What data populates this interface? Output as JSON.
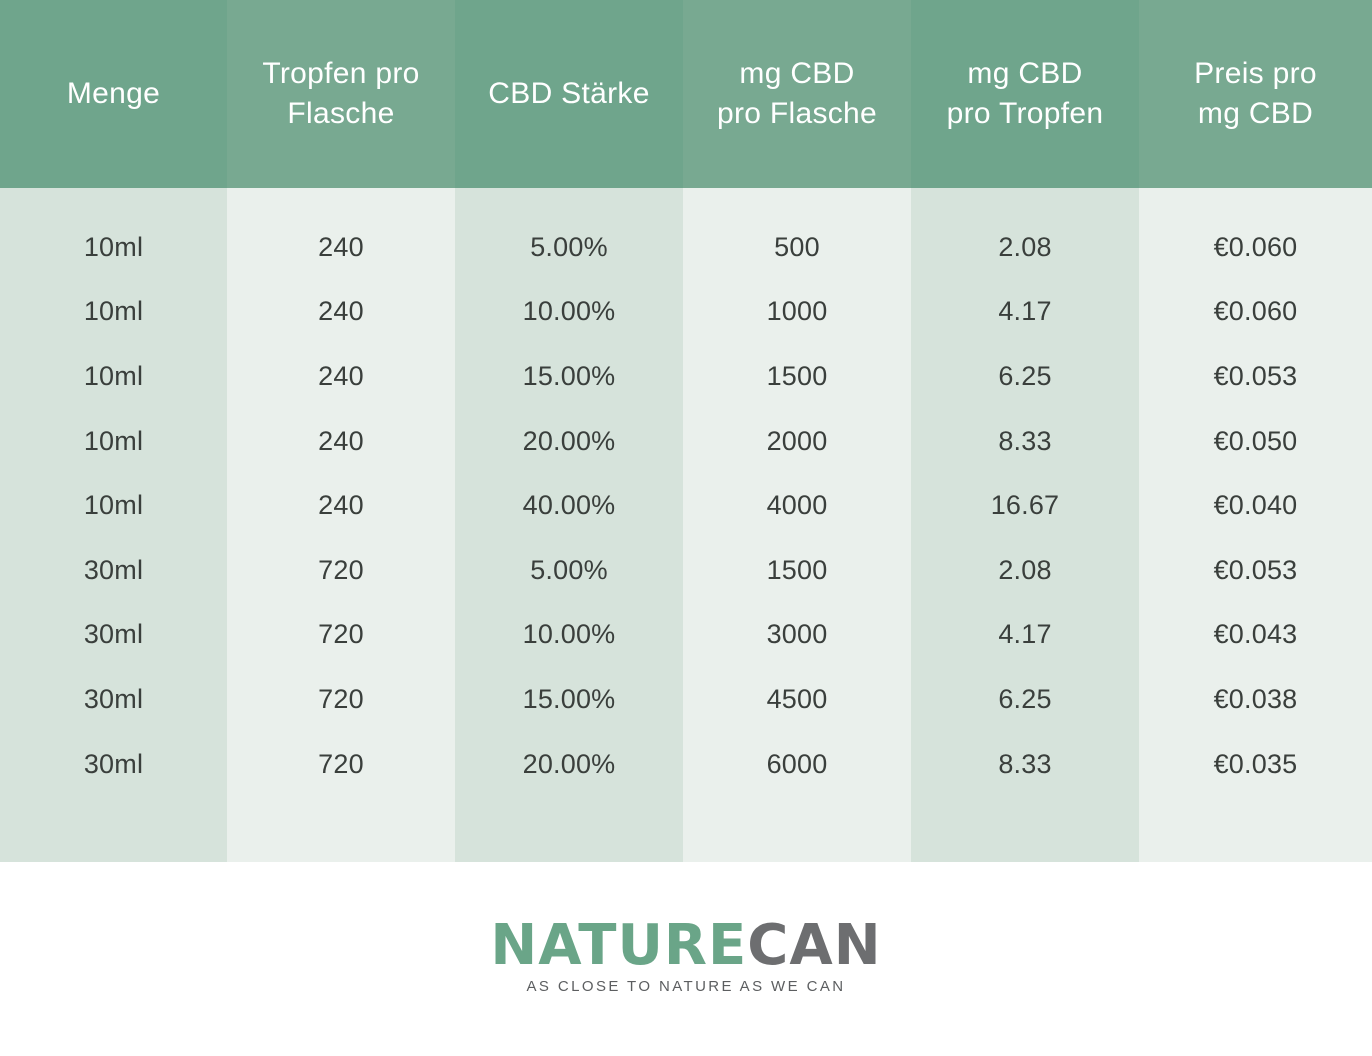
{
  "chart_data": {
    "type": "table",
    "columns": [
      "Menge",
      "Tropfen pro\nFlasche",
      "CBD Stärke",
      "mg CBD\npro Flasche",
      "mg CBD\npro Tropfen",
      "Preis pro\nmg CBD"
    ],
    "rows": [
      [
        "10ml",
        "240",
        "5.00%",
        "500",
        "2.08",
        "€0.060"
      ],
      [
        "10ml",
        "240",
        "10.00%",
        "1000",
        "4.17",
        "€0.060"
      ],
      [
        "10ml",
        "240",
        "15.00%",
        "1500",
        "6.25",
        "€0.053"
      ],
      [
        "10ml",
        "240",
        "20.00%",
        "2000",
        "8.33",
        "€0.050"
      ],
      [
        "10ml",
        "240",
        "40.00%",
        "4000",
        "16.67",
        "€0.040"
      ],
      [
        "30ml",
        "720",
        "5.00%",
        "1500",
        "2.08",
        "€0.053"
      ],
      [
        "30ml",
        "720",
        "10.00%",
        "3000",
        "4.17",
        "€0.043"
      ],
      [
        "30ml",
        "720",
        "15.00%",
        "4500",
        "6.25",
        "€0.038"
      ],
      [
        "30ml",
        "720",
        "20.00%",
        "6000",
        "8.33",
        "€0.035"
      ]
    ]
  },
  "branding": {
    "logo_part1": "NATURE",
    "logo_part2": "CAN",
    "tagline": "AS CLOSE TO NATURE AS WE CAN"
  },
  "colors": {
    "header_a": "#6fa58c",
    "header_b": "#78a991",
    "body_a": "#d6e3db",
    "body_b": "#eaf0ec",
    "logo_green": "#6aa588",
    "logo_gray": "#6d6e70"
  }
}
